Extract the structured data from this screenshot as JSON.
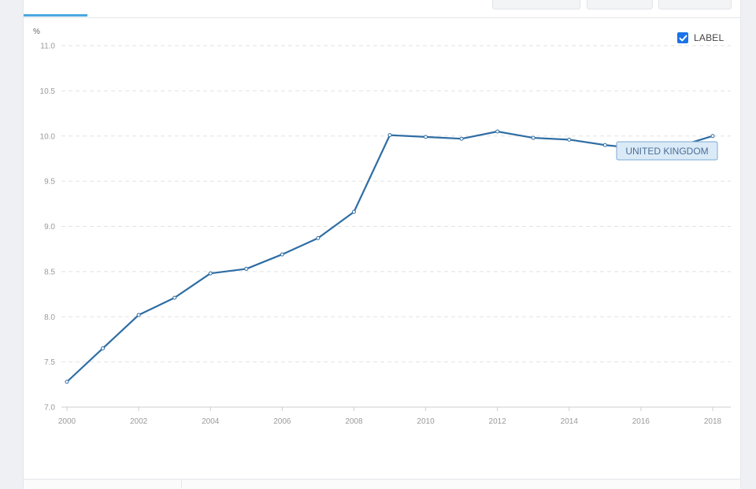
{
  "chart_data": {
    "type": "line",
    "unit_label": "%",
    "legend_checkbox_label": "LABEL",
    "legend_checked": true,
    "x": [
      2000,
      2001,
      2002,
      2003,
      2004,
      2005,
      2006,
      2007,
      2008,
      2009,
      2010,
      2011,
      2012,
      2013,
      2014,
      2015,
      2016,
      2017,
      2018
    ],
    "x_tick_labels": [
      "2000",
      "2002",
      "2004",
      "2006",
      "2008",
      "2010",
      "2012",
      "2014",
      "2016",
      "2018"
    ],
    "y_tick_labels": [
      "7.0",
      "7.5",
      "8.0",
      "8.5",
      "9.0",
      "9.5",
      "10.0",
      "10.5",
      "11.0"
    ],
    "xlim": [
      2000,
      2018
    ],
    "ylim": [
      7.0,
      11.0
    ],
    "grid": true,
    "series": [
      {
        "name": "UNITED KINGDOM",
        "color": "#2e6da4",
        "values": [
          7.28,
          7.65,
          8.02,
          8.21,
          8.48,
          8.53,
          8.69,
          8.87,
          9.16,
          10.01,
          9.99,
          9.97,
          10.05,
          9.98,
          9.96,
          9.9,
          9.86,
          9.88,
          10.0
        ]
      }
    ]
  },
  "colors": {
    "accent_tab": "#4aa8e0",
    "checkbox": "#1a73e8",
    "gridline": "#e2e2e2"
  }
}
